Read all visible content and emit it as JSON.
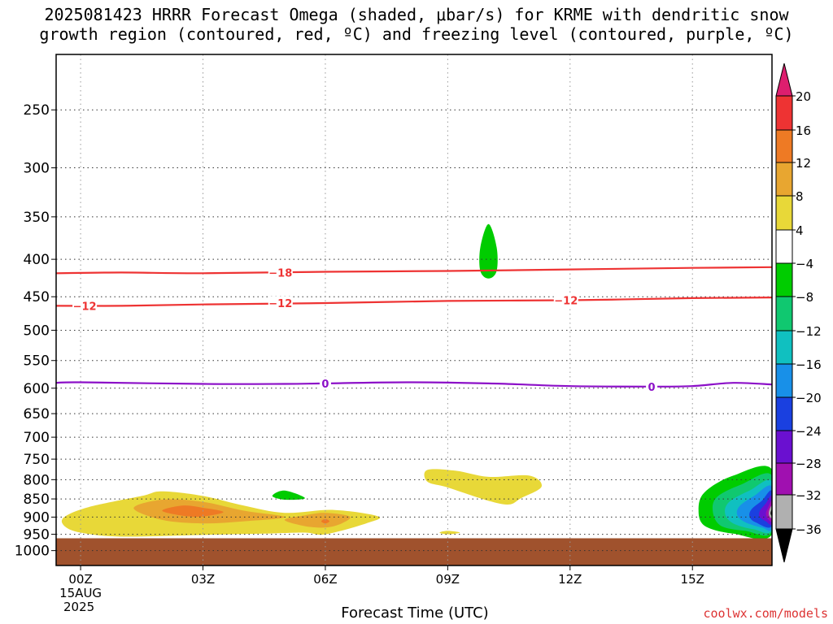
{
  "header": {
    "title_line1": "2025081423 HRRR Forecast Omega (shaded, μbar/s) for KRME with dendritic snow",
    "title_line2": "growth region (contoured, red, ºC) and freezing level (contoured, purple, ºC)"
  },
  "credit": "coolwx.com/models",
  "chart_data": {
    "type": "heatmap",
    "title": "2025081423 HRRR Forecast Omega (shaded, μbar/s) for KRME with dendritic snow growth region (contoured, red, ºC) and freezing level (contoured, purple, ºC)",
    "xlabel": "Forecast Time (UTC)",
    "ylabel": "",
    "x_ticks": [
      {
        "hour": 0,
        "label": "00Z",
        "sublabel1": "15AUG",
        "sublabel2": "2025"
      },
      {
        "hour": 3,
        "label": "03Z"
      },
      {
        "hour": 6,
        "label": "06Z"
      },
      {
        "hour": 9,
        "label": "09Z"
      },
      {
        "hour": 12,
        "label": "12Z"
      },
      {
        "hour": 15,
        "label": "15Z"
      }
    ],
    "xlim": [
      -0.6,
      16.95
    ],
    "y_ticks": [
      250,
      300,
      350,
      400,
      450,
      500,
      550,
      600,
      650,
      700,
      750,
      800,
      850,
      900,
      950,
      1000
    ],
    "ylim": [
      200,
      1050
    ],
    "y_scale": "log",
    "grid": true,
    "colorbar": {
      "labels": [
        "20",
        "16",
        "12",
        "8",
        "4",
        "-4",
        "-8",
        "-12",
        "-16",
        "-20",
        "-24",
        "-28",
        "-32",
        "-36"
      ],
      "colors": [
        "#dd1e6e",
        "#ee3333",
        "#ee7a24",
        "#e8a630",
        "#e8d838",
        "#ffffff",
        "#00cc00",
        "#10c870",
        "#10c0c0",
        "#1890e8",
        "#1a40e0",
        "#6a10d0",
        "#a010b0",
        "#b0b0b0",
        "#000000"
      ]
    },
    "contours": [
      {
        "name": "-18",
        "color": "#ee3333",
        "points": [
          [
            -0.6,
            418
          ],
          [
            1,
            417
          ],
          [
            3,
            418
          ],
          [
            6,
            416
          ],
          [
            9,
            415
          ],
          [
            12,
            413
          ],
          [
            15,
            411
          ],
          [
            16.95,
            410
          ]
        ]
      },
      {
        "name": "-12",
        "color": "#ee3333",
        "points": [
          [
            -0.6,
            463
          ],
          [
            1,
            463
          ],
          [
            3,
            461
          ],
          [
            6,
            459
          ],
          [
            9,
            456
          ],
          [
            12,
            455
          ],
          [
            15,
            452
          ],
          [
            16.95,
            451
          ]
        ]
      },
      {
        "name": "0",
        "color": "#8c10c8",
        "points": [
          [
            -0.6,
            590
          ],
          [
            0,
            589
          ],
          [
            3,
            592
          ],
          [
            5,
            592
          ],
          [
            6,
            591
          ],
          [
            8,
            589
          ],
          [
            10,
            591
          ],
          [
            12,
            596
          ],
          [
            14,
            597
          ],
          [
            15,
            596
          ],
          [
            16,
            590
          ],
          [
            16.95,
            593
          ]
        ]
      }
    ],
    "contour_labels": [
      {
        "text": "-18",
        "hour": 4.9,
        "hpa": 417
      },
      {
        "text": "-12",
        "hour": 0.1,
        "hpa": 463
      },
      {
        "text": "-12",
        "hour": 4.9,
        "hpa": 459
      },
      {
        "text": "-12",
        "hour": 11.9,
        "hpa": 455
      },
      {
        "text": "0",
        "hour": 6.0,
        "hpa": 591
      },
      {
        "text": "0",
        "hour": 14.0,
        "hpa": 597
      }
    ],
    "shaded_regions": [
      {
        "value_range": [
          -8,
          -4
        ],
        "color": "#00cc00",
        "points": [
          [
            10.0,
            358
          ],
          [
            10.2,
            385
          ],
          [
            10.2,
            415
          ],
          [
            10.0,
            425
          ],
          [
            9.8,
            415
          ],
          [
            9.8,
            385
          ]
        ]
      },
      {
        "value_range": [
          -8,
          -4
        ],
        "color": "#00cc00",
        "points": [
          [
            4.7,
            842
          ],
          [
            5.0,
            828
          ],
          [
            5.5,
            848
          ],
          [
            5.0,
            852
          ]
        ]
      },
      {
        "value_range": [
          4,
          8
        ],
        "color": "#e8d838",
        "points": [
          [
            -0.4,
            900
          ],
          [
            0.2,
            872
          ],
          [
            1.5,
            842
          ],
          [
            2.0,
            830
          ],
          [
            3.0,
            842
          ],
          [
            4.0,
            868
          ],
          [
            5.0,
            888
          ],
          [
            6.2,
            880
          ],
          [
            7.3,
            898
          ],
          [
            7.0,
            918
          ],
          [
            6.0,
            950
          ],
          [
            5.5,
            945
          ],
          [
            4.5,
            948
          ],
          [
            3.0,
            952
          ],
          [
            1.0,
            957
          ],
          [
            0,
            945
          ],
          [
            -0.4,
            925
          ]
        ]
      },
      {
        "value_range": [
          8,
          12
        ],
        "color": "#e8a630",
        "points": [
          [
            1.3,
            875
          ],
          [
            2.0,
            852
          ],
          [
            3.0,
            858
          ],
          [
            4.0,
            882
          ],
          [
            5.0,
            900
          ],
          [
            4.0,
            912
          ],
          [
            3.0,
            918
          ],
          [
            2.0,
            908
          ]
        ]
      },
      {
        "value_range": [
          8,
          12
        ],
        "color": "#e8a630",
        "points": [
          [
            5.0,
            908
          ],
          [
            5.5,
            895
          ],
          [
            6.0,
            888
          ],
          [
            6.6,
            898
          ],
          [
            6.4,
            918
          ],
          [
            6.0,
            930
          ],
          [
            5.5,
            926
          ]
        ]
      },
      {
        "value_range": [
          12,
          16
        ],
        "color": "#ee7a24",
        "points": [
          [
            2.0,
            882
          ],
          [
            2.5,
            868
          ],
          [
            3.0,
            874
          ],
          [
            3.5,
            886
          ],
          [
            3.0,
            898
          ],
          [
            2.5,
            896
          ]
        ]
      },
      {
        "value_range": [
          12,
          16
        ],
        "color": "#ee7a24",
        "points": [
          [
            5.9,
            912
          ],
          [
            6.0,
            905
          ],
          [
            6.1,
            912
          ],
          [
            6.0,
            918
          ]
        ]
      },
      {
        "value_range": [
          4,
          8
        ],
        "color": "#e8d838",
        "points": [
          [
            8.5,
            776
          ],
          [
            9.2,
            778
          ],
          [
            10.0,
            793
          ],
          [
            11.0,
            790
          ],
          [
            11.3,
            818
          ],
          [
            10.8,
            848
          ],
          [
            10.5,
            865
          ],
          [
            10.0,
            855
          ],
          [
            9.0,
            820
          ],
          [
            8.5,
            805
          ]
        ]
      },
      {
        "value_range": [
          4,
          8
        ],
        "color": "#e8d838",
        "points": [
          [
            8.8,
            945
          ],
          [
            9.0,
            940
          ],
          [
            9.3,
            945
          ],
          [
            9.0,
            950
          ]
        ]
      },
      {
        "value_range": [
          -8,
          -4
        ],
        "color": "#00cc00",
        "points": [
          [
            16.95,
            775
          ],
          [
            16.0,
            790
          ],
          [
            15.3,
            832
          ],
          [
            15.15,
            880
          ],
          [
            15.3,
            925
          ],
          [
            16.0,
            948
          ],
          [
            16.95,
            950
          ]
        ]
      },
      {
        "value_range": [
          -12,
          -8
        ],
        "color": "#10c870",
        "points": [
          [
            16.95,
            790
          ],
          [
            16.2,
            812
          ],
          [
            15.6,
            845
          ],
          [
            15.5,
            885
          ],
          [
            15.7,
            925
          ],
          [
            16.3,
            940
          ],
          [
            16.95,
            942
          ]
        ]
      },
      {
        "value_range": [
          -16,
          -12
        ],
        "color": "#10c0c0",
        "points": [
          [
            16.95,
            805
          ],
          [
            16.4,
            828
          ],
          [
            15.9,
            858
          ],
          [
            15.8,
            890
          ],
          [
            16.0,
            918
          ],
          [
            16.5,
            935
          ],
          [
            16.95,
            936
          ]
        ]
      },
      {
        "value_range": [
          -20,
          -16
        ],
        "color": "#1890e8",
        "points": [
          [
            16.95,
            818
          ],
          [
            16.5,
            843
          ],
          [
            16.15,
            870
          ],
          [
            16.1,
            895
          ],
          [
            16.3,
            915
          ],
          [
            16.7,
            930
          ],
          [
            16.95,
            931
          ]
        ]
      },
      {
        "value_range": [
          -24,
          -20
        ],
        "color": "#1a40e0",
        "points": [
          [
            16.95,
            830
          ],
          [
            16.7,
            855
          ],
          [
            16.45,
            878
          ],
          [
            16.4,
            898
          ],
          [
            16.55,
            915
          ],
          [
            16.95,
            925
          ]
        ]
      },
      {
        "value_range": [
          -28,
          -24
        ],
        "color": "#6a10d0",
        "points": [
          [
            16.95,
            843
          ],
          [
            16.8,
            862
          ],
          [
            16.65,
            883
          ],
          [
            16.65,
            900
          ],
          [
            16.8,
            912
          ],
          [
            16.95,
            918
          ]
        ]
      },
      {
        "value_range": [
          -32,
          -28
        ],
        "color": "#a010b0",
        "points": [
          [
            16.95,
            855
          ],
          [
            16.85,
            875
          ],
          [
            16.8,
            890
          ],
          [
            16.85,
            905
          ],
          [
            16.95,
            910
          ]
        ]
      },
      {
        "value_range": [
          -36,
          -32
        ],
        "color": "#b0b0b0",
        "points": [
          [
            16.95,
            868
          ],
          [
            16.88,
            882
          ],
          [
            16.88,
            896
          ],
          [
            16.95,
            902
          ]
        ]
      },
      {
        "value_range": [
          -40,
          -36
        ],
        "color": "#000000",
        "points": [
          [
            16.95,
            878
          ],
          [
            16.92,
            886
          ],
          [
            16.92,
            892
          ],
          [
            16.95,
            896
          ]
        ]
      }
    ],
    "surface": {
      "color": "#a0522d",
      "top_hpa": 962
    }
  }
}
